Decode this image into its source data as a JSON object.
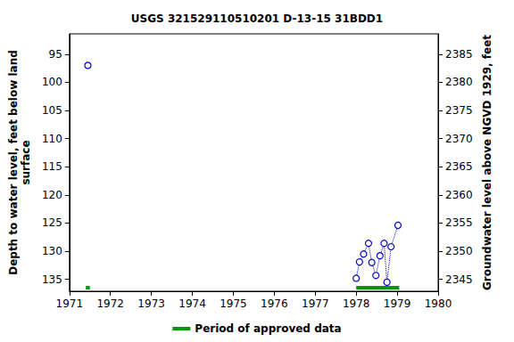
{
  "chart_data": {
    "type": "scatter",
    "title": "USGS 321529110510201 D-13-15 31BDD1",
    "y_label": "Depth to water level, feet below land\nsurface",
    "y2_label": "Groundwater level above NGVD 1929, feet",
    "x": [
      1971.45,
      null,
      1978.0,
      1978.08,
      1978.18,
      1978.3,
      1978.38,
      1978.48,
      1978.58,
      1978.68,
      1978.75,
      1978.85,
      1979.02
    ],
    "series": [
      {
        "values": [
          97.0,
          null,
          134.8,
          131.9,
          130.5,
          128.6,
          132.0,
          134.3,
          130.8,
          128.6,
          135.5,
          129.2,
          125.4
        ],
        "color": "#0000cc",
        "marker": "open_circle",
        "line_style": "dotted"
      }
    ],
    "approved_periods": {
      "name": "Period of approved data",
      "color": "#009900",
      "ranges": [
        [
          1971.4,
          1971.5
        ],
        [
          1978.0,
          1979.05
        ]
      ]
    },
    "xlim": [
      1971,
      1980
    ],
    "xticks": [
      1971,
      1972,
      1973,
      1974,
      1975,
      1976,
      1977,
      1978,
      1979,
      1980
    ],
    "ylim": [
      91.4,
      137.1
    ],
    "yticks": [
      95,
      100,
      105,
      110,
      115,
      120,
      125,
      130,
      135
    ],
    "y2lim": [
      2342.9,
      2388.6
    ],
    "y2ticks": [
      2345,
      2350,
      2355,
      2360,
      2365,
      2370,
      2375,
      2380,
      2385
    ],
    "grid": false,
    "legend": "bottom"
  }
}
